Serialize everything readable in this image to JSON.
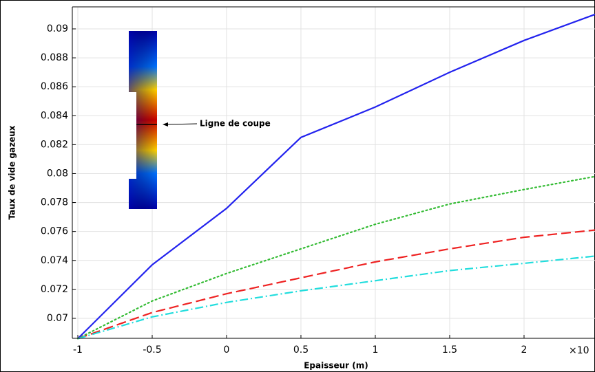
{
  "chart_data": {
    "type": "line",
    "x_label": "Epaisseur (m)",
    "y_label": "Taux de vide gazeux",
    "x_multiplier": "×10",
    "annotation": "Ligne de coupe",
    "x": [
      -1,
      -0.5,
      0,
      0.5,
      1,
      1.5,
      2,
      2.477
    ],
    "series": [
      {
        "color": "#2222ee",
        "dash": "solid",
        "values": [
          0.0686,
          0.0737,
          0.0776,
          0.0825,
          0.0846,
          0.087,
          0.0892,
          0.091
        ]
      },
      {
        "color": "#33bb33",
        "dash": "dot",
        "values": [
          0.0686,
          0.0712,
          0.0731,
          0.0748,
          0.0765,
          0.0779,
          0.0789,
          0.0798
        ]
      },
      {
        "color": "#ee2222",
        "dash": "dash",
        "values": [
          0.0686,
          0.0704,
          0.0717,
          0.0728,
          0.0739,
          0.0748,
          0.0756,
          0.0761
        ]
      },
      {
        "color": "#22dddd",
        "dash": "dashdot",
        "values": [
          0.0686,
          0.0701,
          0.0711,
          0.0719,
          0.0726,
          0.0733,
          0.0738,
          0.0743
        ]
      }
    ],
    "xlim": [
      -1.037,
      2.477
    ],
    "ylim": [
      0.06862,
      0.09152
    ],
    "xticks": [
      -1,
      -0.5,
      0,
      0.5,
      1,
      1.5,
      2
    ],
    "yticks": [
      0.07,
      0.072,
      0.074,
      0.076,
      0.078,
      0.08,
      0.082,
      0.084,
      0.086,
      0.088,
      0.09
    ],
    "grid": true
  }
}
